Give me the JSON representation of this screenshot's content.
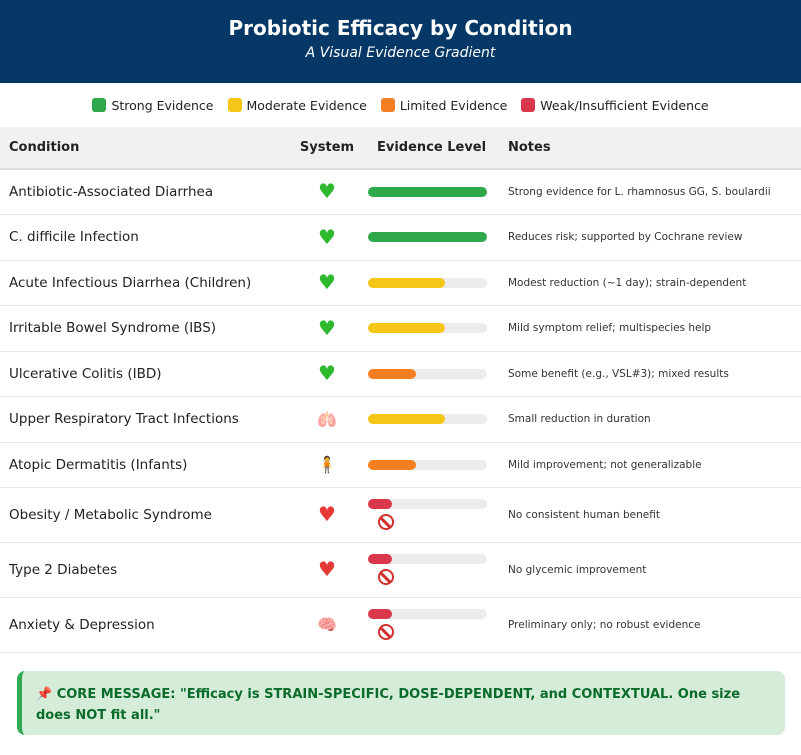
{
  "header": {
    "title": "Probiotic Efficacy by Condition",
    "subtitle": "A Visual Evidence Gradient"
  },
  "legend": [
    {
      "label": "Strong Evidence",
      "color": "#2ea84a"
    },
    {
      "label": "Moderate Evidence",
      "color": "#f5c518"
    },
    {
      "label": "Limited Evidence",
      "color": "#f57f20"
    },
    {
      "label": "Weak/Insufficient Evidence",
      "color": "#d9374b"
    }
  ],
  "table": {
    "columns": [
      "Condition",
      "System",
      "Evidence Level",
      "Notes"
    ],
    "rows": [
      {
        "condition": "Antibiotic-Associated Diarrhea",
        "system_icon": "green-heart-icon",
        "level": "strong",
        "fill": 1.0,
        "notes": "Strong evidence for L. rhamnosus GG, S. boulardii"
      },
      {
        "condition": "C. difficile Infection",
        "system_icon": "green-heart-icon",
        "level": "strong",
        "fill": 1.0,
        "notes": "Reduces risk; supported by Cochrane review"
      },
      {
        "condition": "Acute Infectious Diarrhea (Children)",
        "system_icon": "green-heart-icon",
        "level": "moderate",
        "fill": 0.65,
        "notes": "Modest reduction (~1 day); strain-dependent"
      },
      {
        "condition": "Irritable Bowel Syndrome (IBS)",
        "system_icon": "green-heart-icon",
        "level": "moderate",
        "fill": 0.65,
        "notes": "Mild symptom relief; multispecies help"
      },
      {
        "condition": "Ulcerative Colitis (IBD)",
        "system_icon": "green-heart-icon",
        "level": "limited",
        "fill": 0.4,
        "notes": "Some benefit (e.g., VSL#3); mixed results"
      },
      {
        "condition": "Upper Respiratory Tract Infections",
        "system_icon": "lungs-icon",
        "level": "moderate",
        "fill": 0.65,
        "notes": "Small reduction in duration"
      },
      {
        "condition": "Atopic Dermatitis (Infants)",
        "system_icon": "person-icon",
        "level": "limited",
        "fill": 0.4,
        "notes": "Mild improvement; not generalizable"
      },
      {
        "condition": "Obesity / Metabolic Syndrome",
        "system_icon": "red-heart-icon",
        "level": "weak",
        "fill": 0.2,
        "notes": "No consistent human benefit"
      },
      {
        "condition": "Type 2 Diabetes",
        "system_icon": "red-heart-icon",
        "level": "weak",
        "fill": 0.2,
        "notes": "No glycemic improvement"
      },
      {
        "condition": "Anxiety & Depression",
        "system_icon": "brain-icon",
        "level": "weak",
        "fill": 0.2,
        "notes": "Preliminary only; no robust evidence"
      }
    ]
  },
  "core_message": {
    "prefix": "CORE MESSAGE: \"Efficacy is ",
    "b1": "STRAIN-SPECIFIC, DOSE-DEPENDENT,",
    "mid": " and ",
    "b2": "CONTEXTUAL",
    "mid2": ". One size does ",
    "b3": "NOT",
    "suffix": " fit all.\""
  }
}
